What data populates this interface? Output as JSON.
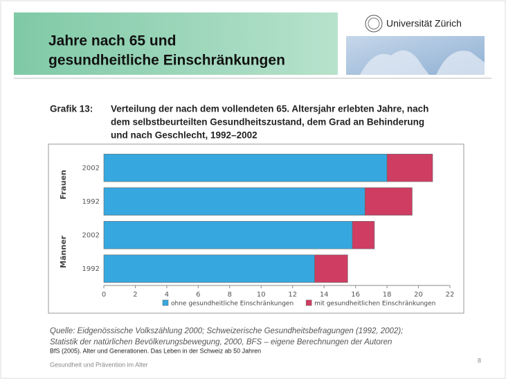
{
  "slide": {
    "header_lines": [
      "Jahre nach 65 und",
      "gesundheitliche Einschränkungen"
    ],
    "logo": "Universität Zürich",
    "source_lines": [
      "Quelle: Eidgenössische Volkszählung 2000; Schweizerische Gesundheitsbefragungen (1992, 2002);",
      "Statistik der natürlichen Bevölkerungsbewegung, 2000, BFS – eigene Berechnungen der Autoren"
    ],
    "reference": "BfS (2005). Alter und Generationen. Das Leben in der Schweiz ab 50 Jahren",
    "footer": "Gesundheit und Prävention im Alter",
    "page_number": "8"
  },
  "chart_data": {
    "type": "stacked-barh",
    "label": "Grafik 13:",
    "title_lines": [
      "Verteilung der nach dem vollendeten 65. Altersjahr erlebten Jahre, nach",
      "dem selbstbeurteilten Gesundheitszustand, dem Grad an Behinderung",
      "und nach Geschlecht, 1992–2002"
    ],
    "groups": [
      {
        "name": "Frauen",
        "categories": [
          "2002",
          "1992"
        ]
      },
      {
        "name": "Männer",
        "categories": [
          "2002",
          "1992"
        ]
      }
    ],
    "series": [
      {
        "name": "ohne gesundheitliche Einschränkungen",
        "color": "#36a8df",
        "values": [
          18.0,
          16.6,
          15.8,
          13.4
        ]
      },
      {
        "name": "mit gesundheitlichen Einschränkungen",
        "color": "#cf3d62",
        "values": [
          2.9,
          3.0,
          1.4,
          2.1
        ]
      }
    ],
    "xlim": [
      0,
      22
    ],
    "xticks": [
      0,
      2,
      4,
      6,
      8,
      10,
      12,
      14,
      16,
      18,
      20,
      22
    ]
  }
}
